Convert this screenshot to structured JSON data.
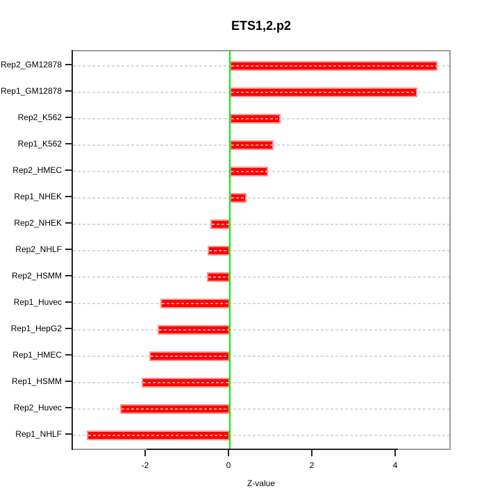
{
  "chart": {
    "title": "ETS1,2.p2",
    "xlabel": "Z-value"
  },
  "chart_data": {
    "type": "bar",
    "orientation": "horizontal",
    "title": "ETS1,2.p2",
    "xlabel": "Z-value",
    "ylabel": "",
    "categories_top_to_bottom": [
      "Rep2_GM12878",
      "Rep1_GM12878",
      "Rep2_K562",
      "Rep1_K562",
      "Rep2_HMEC",
      "Rep1_NHEK",
      "Rep2_NHEK",
      "Rep2_NHLF",
      "Rep2_HSMM",
      "Rep1_Huvec",
      "Rep1_HepG2",
      "Rep1_HMEC",
      "Rep1_HSMM",
      "Rep2_Huvec",
      "Rep1_NHLF"
    ],
    "values": [
      4.98,
      4.5,
      1.22,
      1.05,
      0.92,
      0.4,
      -0.47,
      -0.54,
      -0.55,
      -1.67,
      -1.73,
      -1.93,
      -2.12,
      -2.63,
      -3.43
    ],
    "x_ticks": [
      -2,
      0,
      2,
      4
    ],
    "x_tick_labels": [
      "-2",
      "0",
      "2",
      "4"
    ],
    "xlim": [
      -3.77,
      5.33
    ],
    "grid": "horizontal dashed line per category",
    "zero_line_at": 0,
    "legend": null,
    "colors": {
      "bar_fill": "#ff0000",
      "bar_border": "#ff9292",
      "zero_line": "#00ee00",
      "grid": "#d9d9d9",
      "box_border": "#9e9e9e",
      "axis": "#222222",
      "text": "#000000",
      "background": "#ffffff"
    }
  }
}
